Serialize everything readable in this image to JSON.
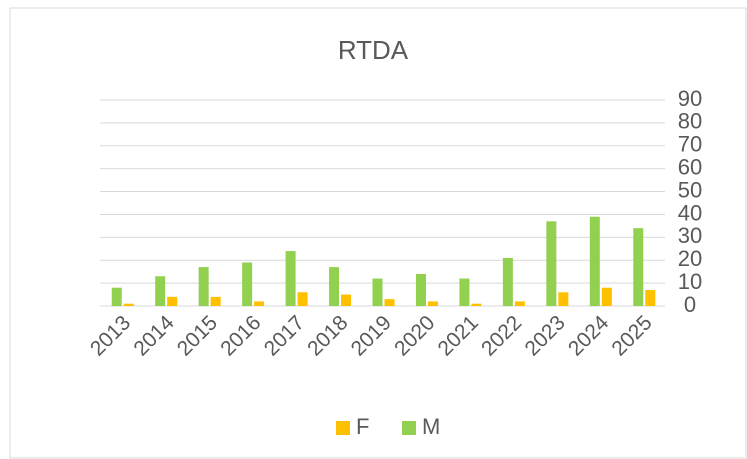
{
  "chart_data": {
    "type": "bar",
    "title": "RTDA",
    "categories": [
      "2013",
      "2014",
      "2015",
      "2016",
      "2017",
      "2018",
      "2019",
      "2020",
      "2021",
      "2022",
      "2023",
      "2024",
      "2025"
    ],
    "series": [
      {
        "name": "F",
        "color": "#ffc000",
        "values": [
          1,
          4,
          4,
          2,
          6,
          5,
          3,
          2,
          1,
          2,
          6,
          8,
          7
        ]
      },
      {
        "name": "M",
        "color": "#92d050",
        "values": [
          8,
          13,
          17,
          19,
          24,
          17,
          12,
          14,
          12,
          21,
          37,
          39,
          34
        ]
      }
    ],
    "ylim": [
      0,
      90
    ],
    "yticks": [
      0,
      10,
      20,
      30,
      40,
      50,
      60,
      70,
      80,
      90
    ],
    "grid": true,
    "legend": "bottom"
  }
}
